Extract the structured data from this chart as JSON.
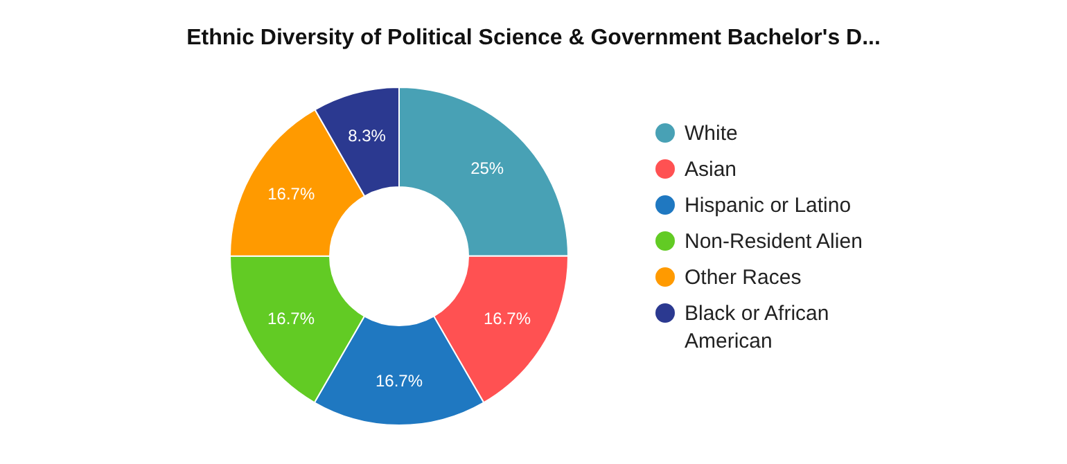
{
  "chart_data": {
    "type": "donut",
    "title": "Ethnic Diversity of Political Science & Government Bachelor's D...",
    "categories": [
      "White",
      "Asian",
      "Hispanic or Latino",
      "Non-Resident Alien",
      "Other Races",
      "Black or African American"
    ],
    "values": [
      25,
      16.7,
      16.7,
      16.7,
      16.7,
      8.3
    ],
    "value_labels": [
      "25%",
      "16.7%",
      "16.7%",
      "16.7%",
      "16.7%",
      "8.3%"
    ],
    "colors": [
      "#48a1b5",
      "#ff5152",
      "#1f78c1",
      "#62cb24",
      "#ff9a00",
      "#2b3990"
    ],
    "legend": "right"
  }
}
